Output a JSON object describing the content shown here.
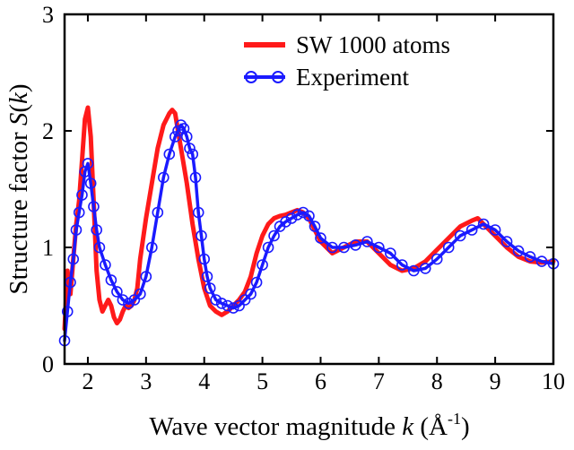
{
  "chart_data": {
    "type": "line",
    "title": "",
    "xlabel": {
      "prefix": "Wave vector magnitude ",
      "var": "k",
      "unit_open": " (Å",
      "unit_sup": "-1",
      "unit_close": ")"
    },
    "ylabel": {
      "prefix": "Structure factor ",
      "var": "S",
      "mid": "(",
      "var2": "k",
      "suffix": ")"
    },
    "xlim": [
      1.6,
      10
    ],
    "ylim": [
      0,
      3
    ],
    "xticks": [
      "2",
      "3",
      "4",
      "5",
      "6",
      "7",
      "8",
      "9",
      "10"
    ],
    "yticks": [
      "0",
      "1",
      "2",
      "3"
    ],
    "grid": false,
    "legend_position": "top-right",
    "series": [
      {
        "name": "SW 1000 atoms",
        "color": "#ff1a1a",
        "marker": "none",
        "x": [
          1.6,
          1.65,
          1.7,
          1.75,
          1.8,
          1.85,
          1.9,
          1.95,
          2.0,
          2.05,
          2.1,
          2.15,
          2.2,
          2.25,
          2.3,
          2.35,
          2.4,
          2.45,
          2.5,
          2.55,
          2.6,
          2.65,
          2.7,
          2.75,
          2.8,
          2.85,
          2.9,
          3.0,
          3.1,
          3.2,
          3.3,
          3.4,
          3.45,
          3.5,
          3.55,
          3.6,
          3.7,
          3.8,
          3.9,
          4.0,
          4.1,
          4.2,
          4.3,
          4.4,
          4.5,
          4.6,
          4.7,
          4.8,
          4.9,
          5.0,
          5.1,
          5.2,
          5.3,
          5.4,
          5.5,
          5.6,
          5.7,
          5.8,
          5.9,
          6.0,
          6.2,
          6.4,
          6.6,
          6.8,
          7.0,
          7.2,
          7.4,
          7.6,
          7.8,
          8.0,
          8.2,
          8.4,
          8.6,
          8.7,
          8.8,
          9.0,
          9.2,
          9.4,
          9.6,
          9.8,
          10.0
        ],
        "y": [
          0.3,
          0.8,
          0.6,
          0.9,
          1.2,
          1.4,
          1.75,
          2.1,
          2.2,
          1.95,
          1.4,
          0.8,
          0.55,
          0.45,
          0.5,
          0.55,
          0.5,
          0.4,
          0.35,
          0.38,
          0.45,
          0.5,
          0.48,
          0.5,
          0.55,
          0.65,
          0.9,
          1.25,
          1.55,
          1.85,
          2.05,
          2.15,
          2.18,
          2.15,
          2.0,
          1.85,
          1.55,
          1.2,
          0.9,
          0.65,
          0.5,
          0.45,
          0.42,
          0.45,
          0.5,
          0.55,
          0.62,
          0.75,
          0.95,
          1.1,
          1.2,
          1.25,
          1.27,
          1.28,
          1.3,
          1.32,
          1.3,
          1.25,
          1.15,
          1.05,
          0.95,
          1.0,
          1.05,
          1.05,
          0.95,
          0.85,
          0.8,
          0.82,
          0.88,
          0.98,
          1.08,
          1.18,
          1.23,
          1.25,
          1.2,
          1.1,
          1.0,
          0.92,
          0.88,
          0.87,
          0.88
        ]
      },
      {
        "name": "Experiment",
        "color": "#1a1aff",
        "marker": "open-circle",
        "x": [
          1.6,
          1.65,
          1.7,
          1.75,
          1.8,
          1.85,
          1.9,
          1.95,
          2.0,
          2.05,
          2.1,
          2.15,
          2.2,
          2.3,
          2.4,
          2.5,
          2.6,
          2.7,
          2.8,
          2.9,
          3.0,
          3.1,
          3.2,
          3.3,
          3.4,
          3.5,
          3.55,
          3.6,
          3.65,
          3.7,
          3.75,
          3.8,
          3.85,
          3.9,
          3.95,
          4.0,
          4.05,
          4.1,
          4.2,
          4.3,
          4.4,
          4.5,
          4.6,
          4.7,
          4.8,
          4.9,
          5.0,
          5.1,
          5.2,
          5.3,
          5.4,
          5.5,
          5.6,
          5.7,
          5.8,
          5.9,
          6.0,
          6.2,
          6.4,
          6.6,
          6.8,
          7.0,
          7.2,
          7.4,
          7.6,
          7.8,
          8.0,
          8.2,
          8.4,
          8.6,
          8.8,
          9.0,
          9.2,
          9.4,
          9.6,
          9.8,
          10.0
        ],
        "y": [
          0.2,
          0.45,
          0.7,
          0.9,
          1.15,
          1.3,
          1.45,
          1.65,
          1.72,
          1.55,
          1.35,
          1.15,
          1.0,
          0.85,
          0.72,
          0.62,
          0.55,
          0.52,
          0.55,
          0.6,
          0.75,
          1.0,
          1.3,
          1.6,
          1.8,
          1.95,
          2.0,
          2.05,
          2.02,
          1.95,
          1.85,
          1.8,
          1.6,
          1.3,
          1.1,
          0.9,
          0.75,
          0.65,
          0.55,
          0.52,
          0.5,
          0.48,
          0.5,
          0.55,
          0.6,
          0.7,
          0.85,
          1.0,
          1.1,
          1.18,
          1.22,
          1.25,
          1.28,
          1.3,
          1.27,
          1.18,
          1.08,
          1.0,
          1.0,
          1.02,
          1.05,
          1.0,
          0.95,
          0.85,
          0.8,
          0.82,
          0.9,
          1.0,
          1.1,
          1.15,
          1.2,
          1.15,
          1.05,
          0.97,
          0.92,
          0.88,
          0.86
        ]
      }
    ]
  }
}
